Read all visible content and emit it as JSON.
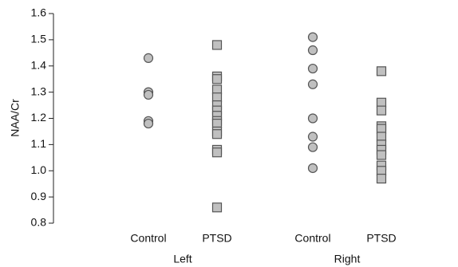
{
  "chart_data": {
    "type": "strip",
    "ylabel": "NAA/Cr",
    "ylim": [
      0.8,
      1.6
    ],
    "yticks": [
      0.8,
      0.9,
      {
        "value": 1,
        "label": "1.0"
      },
      1.1,
      1.2,
      1.3,
      1.4,
      1.5,
      1.6
    ],
    "marker_fill": "#c0c0c0",
    "marker_stroke": "#555555",
    "groups": [
      {
        "name": "Left",
        "columns": [
          {
            "category": "Control",
            "marker": "circle",
            "values": [
              1.43,
              1.3,
              1.29,
              1.19,
              1.18
            ]
          },
          {
            "category": "PTSD",
            "marker": "square",
            "values": [
              1.48,
              1.36,
              1.35,
              1.31,
              1.28,
              1.25,
              1.23,
              1.21,
              1.19,
              1.18,
              1.15,
              1.14,
              1.08,
              1.07,
              0.86
            ]
          }
        ]
      },
      {
        "name": "Right",
        "columns": [
          {
            "category": "Control",
            "marker": "circle",
            "values": [
              1.51,
              1.46,
              1.39,
              1.33,
              1.2,
              1.13,
              1.09,
              1.01
            ]
          },
          {
            "category": "PTSD",
            "marker": "square",
            "values": [
              1.38,
              1.26,
              1.23,
              1.17,
              1.16,
              1.13,
              1.1,
              1.08,
              1.06,
              1.02,
              1.0,
              0.97
            ]
          }
        ]
      }
    ]
  }
}
